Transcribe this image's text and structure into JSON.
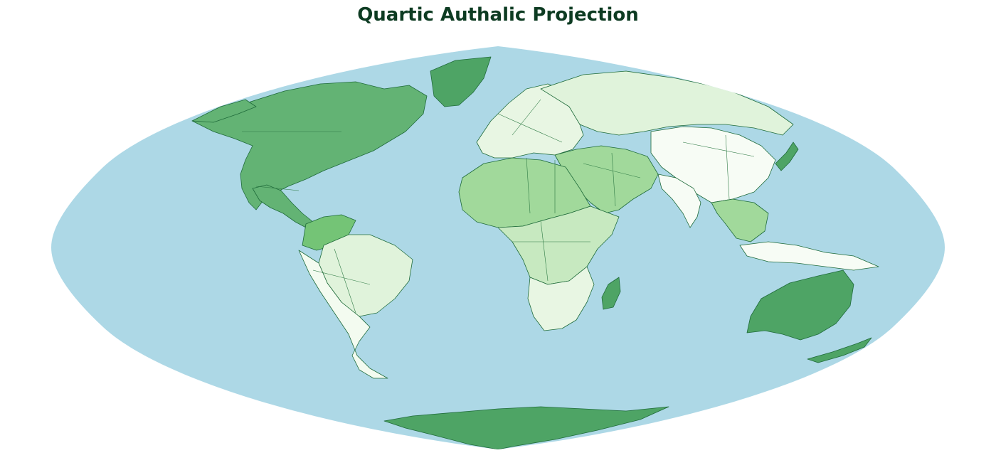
{
  "title": "Quartic Authalic Projection",
  "colors": {
    "ocean": "#add8e6",
    "background": "#ffffff",
    "title": "#0d3b22",
    "outline": "#1f6b3a",
    "choropleth_scale": [
      "#f7fcf5",
      "#e0f3db",
      "#c7e9c0",
      "#a1d99b",
      "#74c476",
      "#41ab5d"
    ]
  },
  "legend": null,
  "regions": [
    {
      "name": "North America",
      "shade": "#63b374"
    },
    {
      "name": "Greenland",
      "shade": "#4ea465"
    },
    {
      "name": "Central America",
      "shade": "#63b374"
    },
    {
      "name": "Colombia/Venezuela",
      "shade": "#74c476"
    },
    {
      "name": "Brazil",
      "shade": "#e0f3db"
    },
    {
      "name": "Southern South America",
      "shade": "#f3fbf0"
    },
    {
      "name": "Europe",
      "shade": "#e8f6e3"
    },
    {
      "name": "Russia",
      "shade": "#e0f3db"
    },
    {
      "name": "China",
      "shade": "#f7fcf5"
    },
    {
      "name": "Middle East",
      "shade": "#a1d99b"
    },
    {
      "name": "India",
      "shade": "#f7fcf5"
    },
    {
      "name": "Southeast Asia",
      "shade": "#a1d99b"
    },
    {
      "name": "Indonesia",
      "shade": "#f7fcf5"
    },
    {
      "name": "North Africa",
      "shade": "#a1d99b"
    },
    {
      "name": "Central Africa",
      "shade": "#c7e9c0"
    },
    {
      "name": "Southern Africa",
      "shade": "#e8f6e3"
    },
    {
      "name": "Madagascar",
      "shade": "#4ea465"
    },
    {
      "name": "Australia",
      "shade": "#4ea465"
    },
    {
      "name": "New Zealand",
      "shade": "#4ea465"
    },
    {
      "name": "Japan",
      "shade": "#4ea465"
    },
    {
      "name": "Antarctica",
      "shade": "#4ea465"
    }
  ]
}
